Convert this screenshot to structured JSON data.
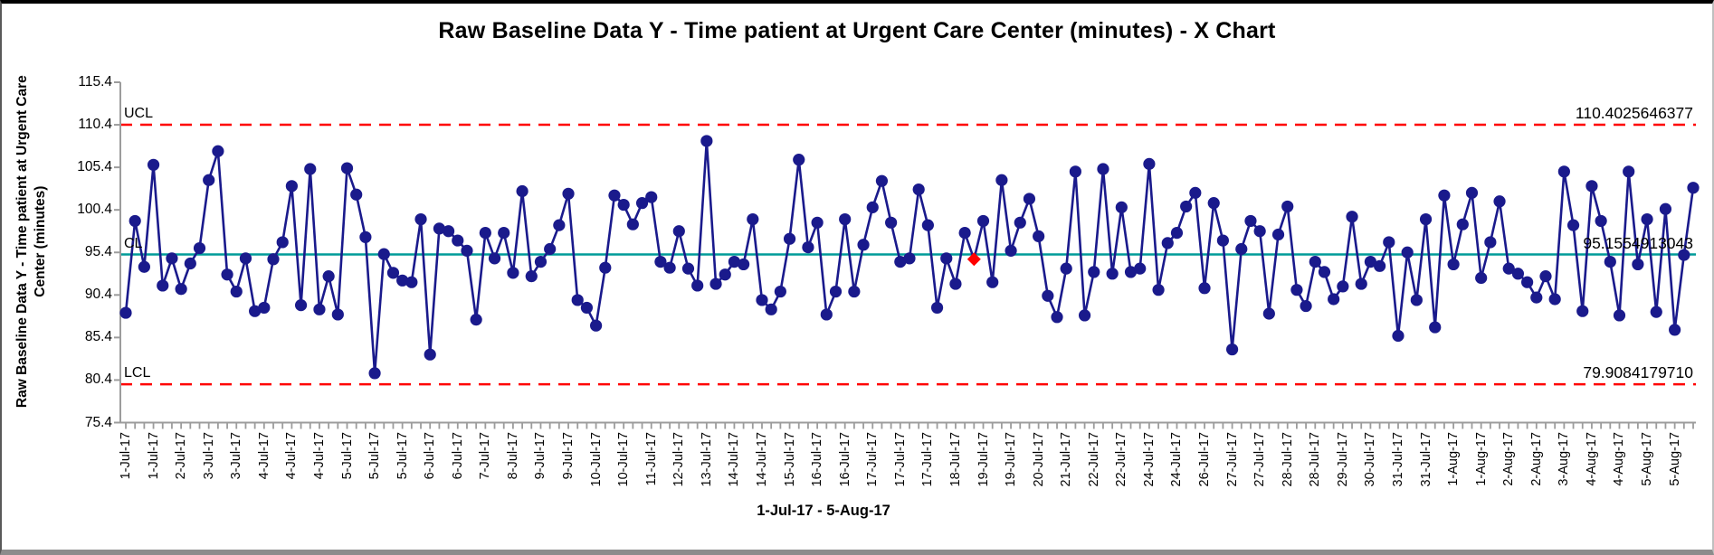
{
  "chart_data": {
    "type": "line",
    "subtype": "control-chart-x",
    "title": "Raw Baseline Data Y - Time patient at Urgent Care Center (minutes) - X Chart",
    "ylabel": "Raw Baseline Data Y - Time patient at Urgent Care Center (minutes)",
    "ylabel_lines": [
      "Raw Baseline Data Y - Time patient at Urgent Care",
      "Center (minutes)"
    ],
    "xlabel": "1-Jul-17 - 5-Aug-17",
    "ylim": [
      75.4,
      115.4
    ],
    "y_ticks": [
      115.4,
      110.4,
      105.4,
      100.4,
      95.4,
      90.4,
      85.4,
      80.4,
      75.4
    ],
    "grid": "off",
    "legend": "none",
    "label_every": 3,
    "x_labels": [
      "1-Jul-17",
      "1-Jul-17",
      "2-Jul-17",
      "3-Jul-17",
      "3-Jul-17",
      "4-Jul-17",
      "4-Jul-17",
      "4-Jul-17",
      "5-Jul-17",
      "5-Jul-17",
      "5-Jul-17",
      "6-Jul-17",
      "6-Jul-17",
      "7-Jul-17",
      "8-Jul-17",
      "9-Jul-17",
      "9-Jul-17",
      "10-Jul-17",
      "10-Jul-17",
      "11-Jul-17",
      "12-Jul-17",
      "13-Jul-17",
      "14-Jul-17",
      "14-Jul-17",
      "15-Jul-17",
      "16-Jul-17",
      "16-Jul-17",
      "17-Jul-17",
      "17-Jul-17",
      "17-Jul-17",
      "18-Jul-17",
      "19-Jul-17",
      "19-Jul-17",
      "20-Jul-17",
      "21-Jul-17",
      "22-Jul-17",
      "22-Jul-17",
      "24-Jul-17",
      "24-Jul-17",
      "26-Jul-17",
      "27-Jul-17",
      "27-Jul-17",
      "28-Jul-17",
      "28-Jul-17",
      "29-Jul-17",
      "30-Jul-17",
      "31-Jul-17",
      "31-Jul-17",
      "1-Aug-17",
      "1-Aug-17",
      "2-Aug-17",
      "2-Aug-17",
      "3-Aug-17",
      "4-Aug-17",
      "4-Aug-17",
      "5-Aug-17",
      "5-Aug-17"
    ],
    "values": [
      88.3,
      99.1,
      93.7,
      105.7,
      91.5,
      94.7,
      91.1,
      94.1,
      95.9,
      103.9,
      107.3,
      92.8,
      90.8,
      94.7,
      88.5,
      88.9,
      94.6,
      96.6,
      103.2,
      89.2,
      105.2,
      88.7,
      92.6,
      88.1,
      105.3,
      102.2,
      97.2,
      81.2,
      95.2,
      93.0,
      92.1,
      91.9,
      99.3,
      83.4,
      98.2,
      97.9,
      96.8,
      95.6,
      87.5,
      97.7,
      94.7,
      97.7,
      93.0,
      102.6,
      92.6,
      94.3,
      95.8,
      98.6,
      102.3,
      89.8,
      88.9,
      86.8,
      93.6,
      102.1,
      101.0,
      98.7,
      101.2,
      101.9,
      94.3,
      93.6,
      97.9,
      93.5,
      91.5,
      108.5,
      91.7,
      92.8,
      94.3,
      94.0,
      99.3,
      89.8,
      88.7,
      90.8,
      97.0,
      106.3,
      96.0,
      98.9,
      88.1,
      90.8,
      99.3,
      90.8,
      96.3,
      100.7,
      103.8,
      98.9,
      94.3,
      94.7,
      102.8,
      98.6,
      88.9,
      94.7,
      91.7,
      97.7,
      94.6,
      99.1,
      91.9,
      103.9,
      95.6,
      98.9,
      101.7,
      97.3,
      90.3,
      87.8,
      93.5,
      104.9,
      88.0,
      93.1,
      105.2,
      92.9,
      100.7,
      93.1,
      93.5,
      105.8,
      91.0,
      96.5,
      97.7,
      100.8,
      102.4,
      91.2,
      101.2,
      96.8,
      84.0,
      95.8,
      99.1,
      97.9,
      88.2,
      97.5,
      100.8,
      91.0,
      89.1,
      94.3,
      93.1,
      89.9,
      91.4,
      99.6,
      91.7,
      94.3,
      93.8,
      96.6,
      85.6,
      95.4,
      89.8,
      99.3,
      86.6,
      102.1,
      94.0,
      98.7,
      102.4,
      92.4,
      96.6,
      101.4,
      93.5,
      92.9,
      91.9,
      90.1,
      92.6,
      89.9,
      104.9,
      98.6,
      88.5,
      103.2,
      99.1,
      94.3,
      88.0,
      104.9,
      94.0,
      99.3,
      88.4,
      100.5,
      86.3,
      95.1,
      103.0
    ],
    "special_point": {
      "index": 92,
      "value": 94.6,
      "marker": "red-diamond"
    },
    "limits": {
      "ucl": {
        "label": "UCL",
        "value": 110.4025646377,
        "display": "110.4025646377"
      },
      "cl": {
        "label": "CL",
        "value": 95.1554913043,
        "display": "95.1554913043"
      },
      "lcl": {
        "label": "LCL",
        "value": 79.908417971,
        "display": "79.9084179710"
      }
    },
    "colors": {
      "series": "#1A1A8C",
      "center_line": "#009B99",
      "limit_line": "#FF0000",
      "special_point": "#FF0000",
      "axis": "#9C9C9C",
      "text": "#000000"
    }
  }
}
